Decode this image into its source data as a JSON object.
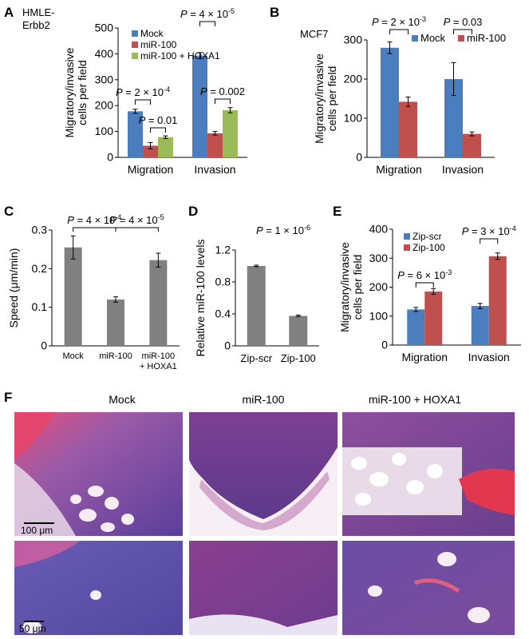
{
  "panel_letters": {
    "a": "A",
    "b": "B",
    "c": "C",
    "d": "D",
    "e": "E",
    "f": "F"
  },
  "colors": {
    "blue": "#4a7ebf",
    "red": "#c0504d",
    "green": "#9bbb59",
    "gray": "#808080",
    "axis": "#000000"
  },
  "chart_data": [
    {
      "id": "A",
      "type": "bar",
      "label_line1": "HMLE-",
      "label_line2": "Erbb2",
      "ylabel_line1": "Migratory/invasive",
      "ylabel_line2": "cells per field",
      "categories": [
        "Migration",
        "Invasion"
      ],
      "ylim": [
        0,
        500
      ],
      "yticks": [
        0,
        100,
        200,
        300,
        400,
        500
      ],
      "series": [
        {
          "name": "Mock",
          "color": "#4a7ebf",
          "values": [
            178,
            393
          ],
          "errors": [
            8,
            12
          ]
        },
        {
          "name": "miR-100",
          "color": "#c0504d",
          "values": [
            45,
            93
          ],
          "errors": [
            12,
            7
          ]
        },
        {
          "name": "miR-100 + HOXA1",
          "color": "#9bbb59",
          "values": [
            78,
            182
          ],
          "errors": [
            5,
            10
          ]
        }
      ],
      "annotations": [
        "P = 2 × 10-4",
        "P = 0.01",
        "P = 4 × 10-5",
        "P = 0.002"
      ],
      "legend_position": "top-right"
    },
    {
      "id": "B",
      "type": "bar",
      "label": "MCF7",
      "ylabel_line1": "Migratory/invasive",
      "ylabel_line2": "cells per field",
      "categories": [
        "Migration",
        "Invasion"
      ],
      "ylim": [
        0,
        300
      ],
      "yticks": [
        0,
        100,
        200,
        300
      ],
      "series": [
        {
          "name": "Mock",
          "color": "#4a7ebf",
          "values": [
            280,
            200
          ],
          "errors": [
            15,
            42
          ]
        },
        {
          "name": "miR-100",
          "color": "#c0504d",
          "values": [
            142,
            60
          ],
          "errors": [
            12,
            5
          ]
        }
      ],
      "annotations": [
        "P = 2 × 10-3",
        "P = 0.03"
      ],
      "legend_position": "top-right"
    },
    {
      "id": "C",
      "type": "bar",
      "ylabel": "Speed (μm/min)",
      "categories": [
        "Mock",
        "miR-100",
        "miR-100 + HOXA1"
      ],
      "cat_line1": [
        "Mock",
        "miR-100",
        "miR-100"
      ],
      "cat_line2": [
        "",
        "",
        "+ HOXA1"
      ],
      "ylim": [
        0,
        0.3
      ],
      "yticks": [
        "0",
        "0.1",
        "0.2",
        "0.3"
      ],
      "values": [
        0.255,
        0.12,
        0.222
      ],
      "errors": [
        0.03,
        0.007,
        0.018
      ],
      "annotations": [
        "P = 4 × 10-4",
        "P = 4 × 10-5"
      ]
    },
    {
      "id": "D",
      "type": "bar",
      "ylabel": "Relative miR-100 levels",
      "categories": [
        "Zip-scr",
        "Zip-100"
      ],
      "ylim": [
        0,
        1.2
      ],
      "yticks": [
        "0",
        "0.4",
        "0.8",
        "1.2"
      ],
      "values": [
        1.0,
        0.375
      ],
      "errors": [
        0.01,
        0.01
      ],
      "annotations": [
        "P = 1 × 10-6"
      ]
    },
    {
      "id": "E",
      "type": "bar",
      "ylabel_line1": "Migratory/invasive",
      "ylabel_line2": "cells per field",
      "categories": [
        "Migration",
        "Invasion"
      ],
      "ylim": [
        0,
        400
      ],
      "yticks": [
        0,
        100,
        200,
        300,
        400
      ],
      "series": [
        {
          "name": "Zip-scr",
          "color": "#4a7ebf",
          "values": [
            123,
            135
          ],
          "errors": [
            7,
            9
          ]
        },
        {
          "name": "Zip-100",
          "color": "#c0504d",
          "values": [
            185,
            307
          ],
          "errors": [
            10,
            11
          ]
        }
      ],
      "annotations": [
        "P = 6 × 10-3",
        "P = 3 × 10-4"
      ],
      "legend_position": "top-left"
    }
  ],
  "histology": {
    "col_titles": [
      "Mock",
      "miR-100",
      "miR-100 + HOXA1"
    ],
    "scale_top": "100 μm",
    "scale_bottom": "50 μm"
  }
}
